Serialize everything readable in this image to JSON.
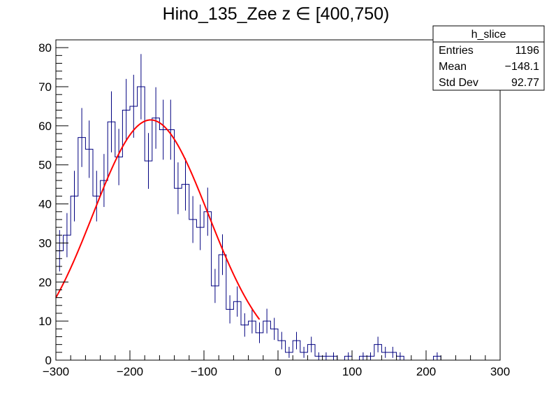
{
  "chart_data": {
    "type": "bar",
    "title": "Hino_135_Zee z  ∈ [400,750)",
    "xlabel": "",
    "ylabel": "",
    "xlim": [
      -300,
      300
    ],
    "ylim": [
      0,
      82
    ],
    "x_ticks": [
      -300,
      -200,
      -100,
      0,
      100,
      200,
      300
    ],
    "y_ticks": [
      0,
      10,
      20,
      30,
      40,
      50,
      60,
      70,
      80
    ],
    "grid": false,
    "bin_width": 10,
    "bin_edges_start": -300,
    "series": [
      {
        "values": [
          28,
          32,
          42,
          57,
          54,
          42,
          46,
          61,
          52,
          64,
          65,
          70,
          51,
          62,
          59,
          59,
          44,
          45,
          36,
          34,
          38,
          19,
          27,
          13,
          15,
          9,
          10,
          7,
          10,
          8,
          5,
          2,
          5,
          2,
          4,
          1,
          1,
          1,
          0,
          1,
          0,
          1,
          1,
          4,
          2,
          2,
          1,
          0,
          0,
          0,
          0,
          1,
          0,
          0,
          0,
          0,
          0,
          0,
          0,
          0
        ],
        "color": "#00007f"
      }
    ],
    "fit": {
      "type": "gaussian",
      "range": [
        -300,
        -25
      ],
      "amplitude": 61.5,
      "mean": -172,
      "sigma": 78,
      "color": "#ff0000"
    },
    "stats": {
      "name": "h_slice",
      "rows": [
        {
          "label": "Entries",
          "value": "1196"
        },
        {
          "label": "Mean",
          "value": "−148.1"
        },
        {
          "label": "Std Dev",
          "value": "92.77"
        }
      ]
    }
  }
}
